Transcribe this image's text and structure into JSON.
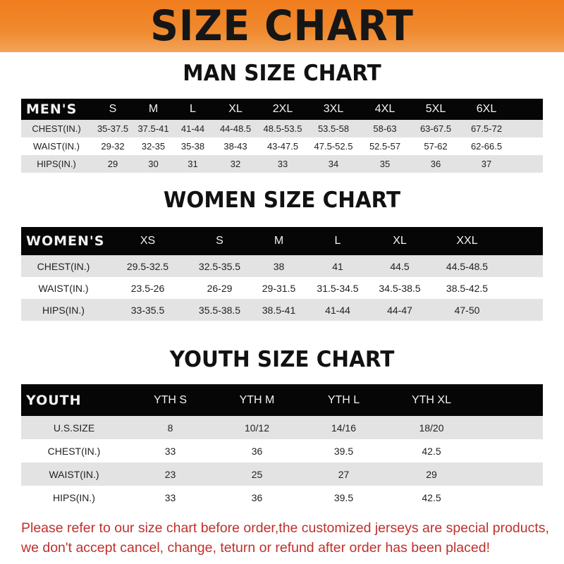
{
  "title": "SIZE CHART",
  "men": {
    "title": "MAN SIZE CHART",
    "header": [
      "MEN'S",
      "S",
      "M",
      "L",
      "XL",
      "2XL",
      "3XL",
      "4XL",
      "5XL",
      "6XL"
    ],
    "rows": [
      [
        "CHEST(IN.)",
        "35-37.5",
        "37.5-41",
        "41-44",
        "44-48.5",
        "48.5-53.5",
        "53.5-58",
        "58-63",
        "63-67.5",
        "67.5-72"
      ],
      [
        "WAIST(IN.)",
        "29-32",
        "32-35",
        "35-38",
        "38-43",
        "43-47.5",
        "47.5-52.5",
        "52.5-57",
        "57-62",
        "62-66.5"
      ],
      [
        "HIPS(IN.)",
        "29",
        "30",
        "31",
        "32",
        "33",
        "34",
        "35",
        "36",
        "37"
      ]
    ]
  },
  "women": {
    "title": "WOMEN SIZE CHART",
    "header": [
      "WOMEN'S",
      "XS",
      "S",
      "M",
      "L",
      "XL",
      "XXL"
    ],
    "rows": [
      [
        "CHEST(IN.)",
        "29.5-32.5",
        "32.5-35.5",
        "38",
        "41",
        "44.5",
        "44.5-48.5"
      ],
      [
        "WAIST(IN.)",
        "23.5-26",
        "26-29",
        "29-31.5",
        "31.5-34.5",
        "34.5-38.5",
        "38.5-42.5"
      ],
      [
        "HIPS(IN.)",
        "33-35.5",
        "35.5-38.5",
        "38.5-41",
        "41-44",
        "44-47",
        "47-50"
      ]
    ]
  },
  "youth": {
    "title": "YOUTH SIZE CHART",
    "header": [
      "YOUTH",
      "YTH S",
      "YTH M",
      "YTH L",
      "YTH XL"
    ],
    "rows": [
      [
        "U.S.SIZE",
        "8",
        "10/12",
        "14/16",
        "18/20"
      ],
      [
        "CHEST(IN.)",
        "33",
        "36",
        "39.5",
        "42.5"
      ],
      [
        "WAIST(IN.)",
        "23",
        "25",
        "27",
        "29"
      ],
      [
        "HIPS(IN.)",
        "33",
        "36",
        "39.5",
        "42.5"
      ]
    ]
  },
  "note": [
    "Please refer to our size chart before order,the customized jerseys are special products,",
    "we don't accept cancel, change, teturn or refund after order has been placed!"
  ],
  "colors": {
    "banner": "#f07d1e",
    "header_row": "#060606",
    "alt_row": "#e3e3e3",
    "note": "#c0302c"
  }
}
